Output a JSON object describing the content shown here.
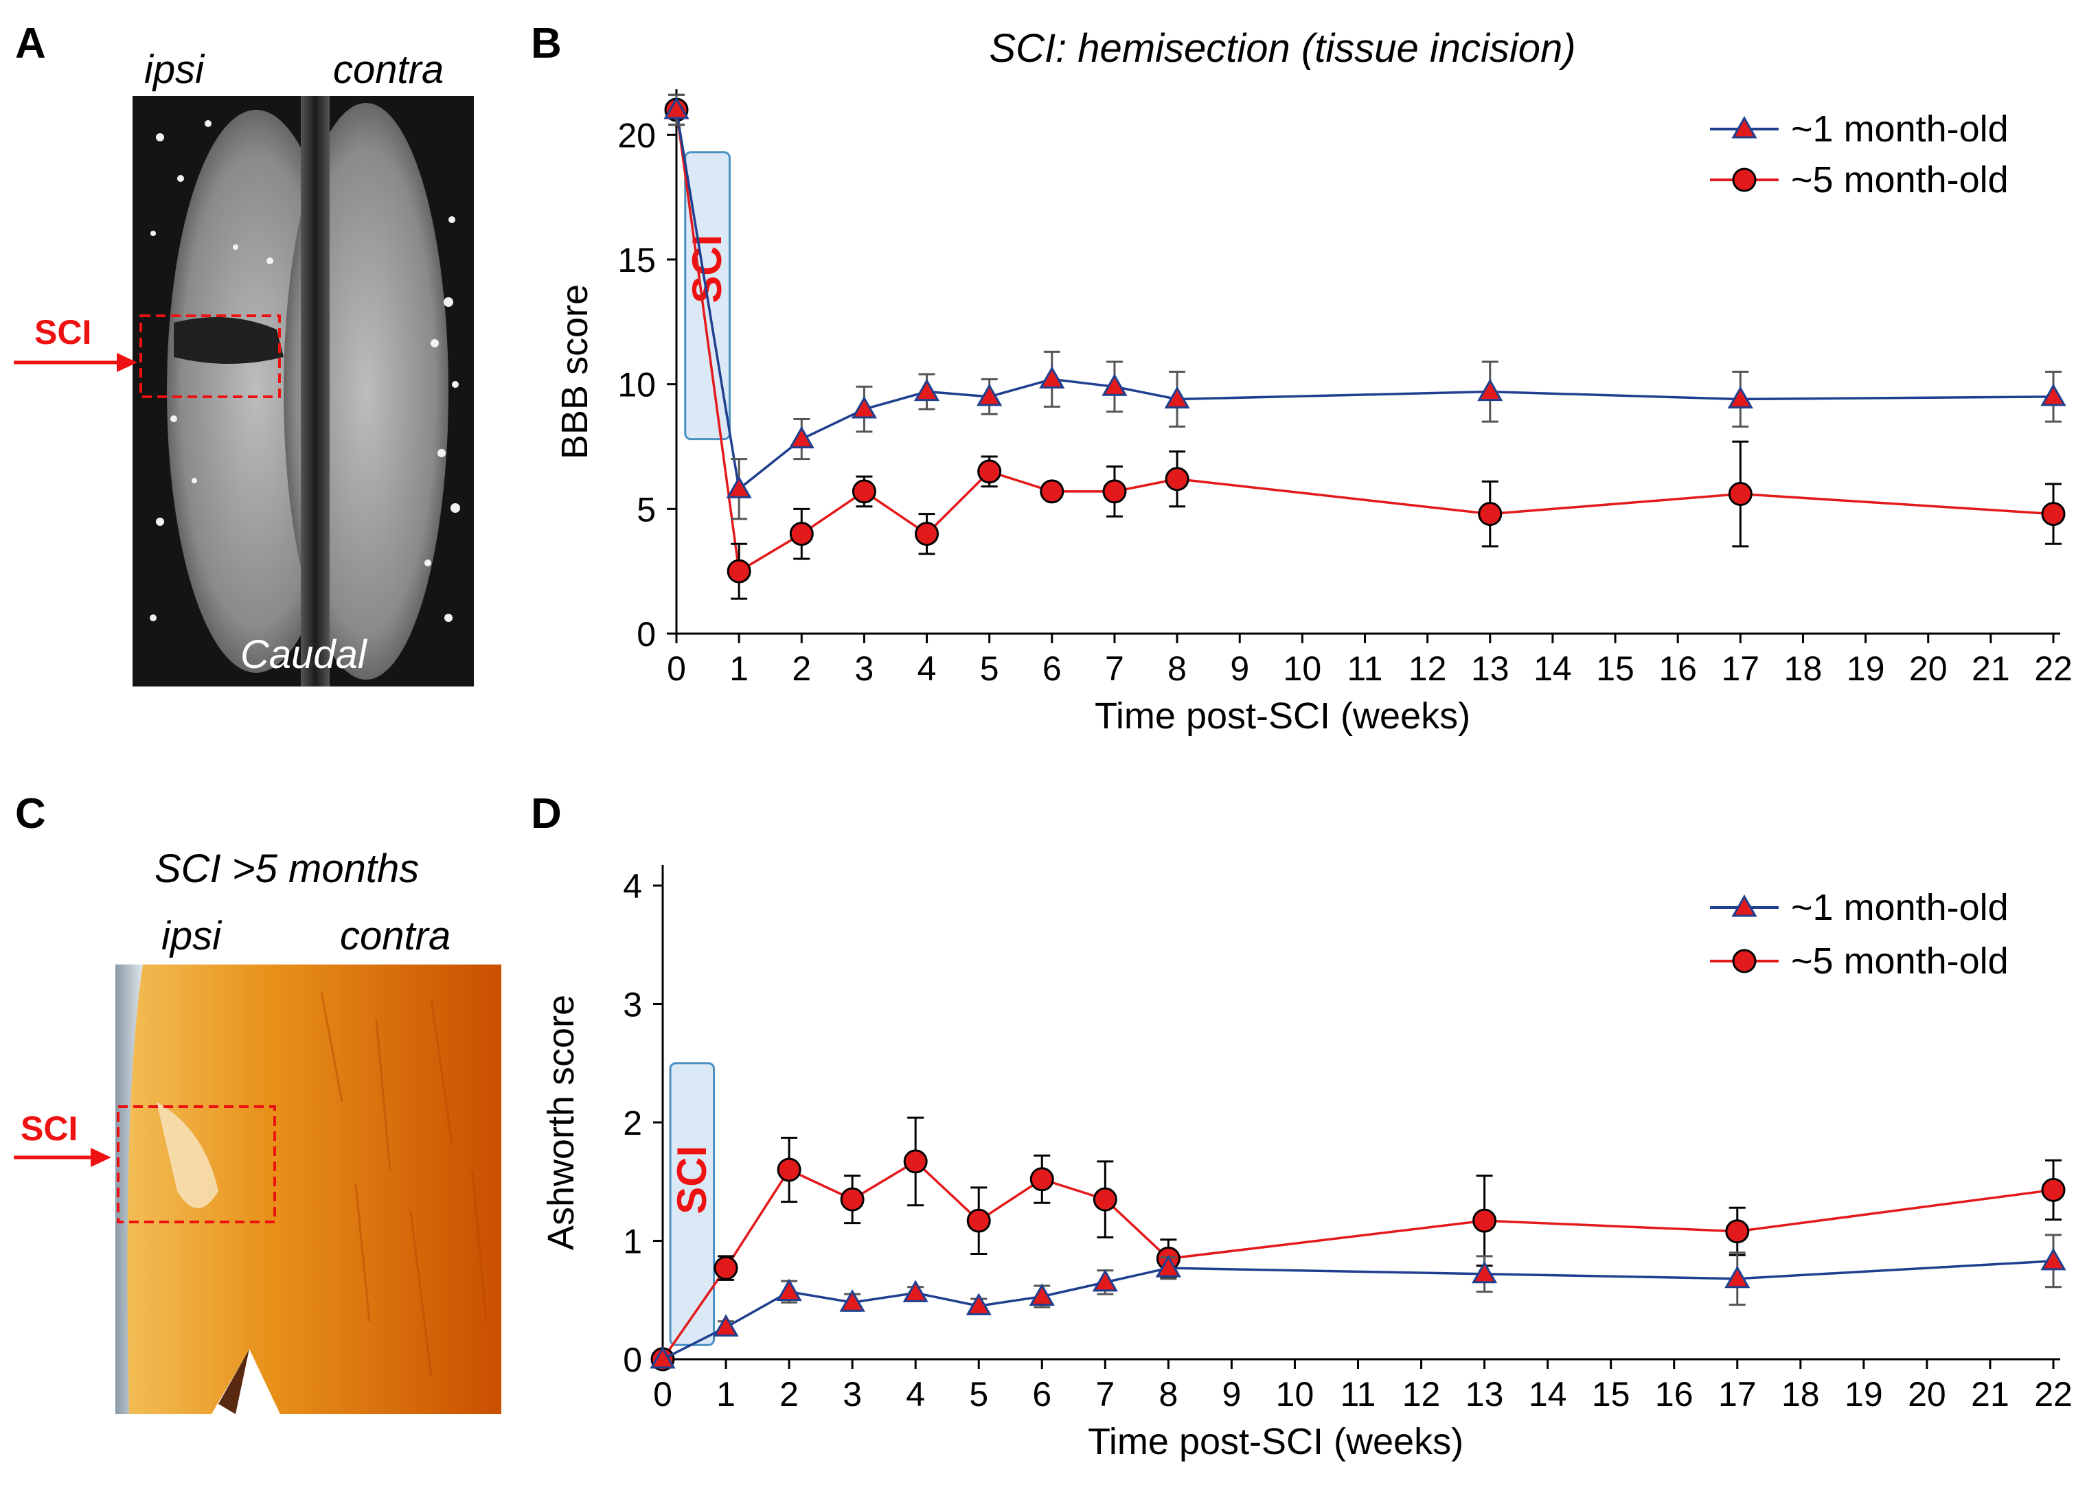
{
  "panels": {
    "a": {
      "letter": "A",
      "ipsi": "ipsi",
      "contra": "contra",
      "caudal": "Caudal",
      "sci": "SCI"
    },
    "c": {
      "letter": "C",
      "title": "SCI >5 months",
      "ipsi": "ipsi",
      "contra": "contra",
      "sci": "SCI"
    },
    "b": {
      "letter": "B"
    },
    "d": {
      "letter": "D"
    }
  },
  "colors": {
    "young": "#1f3f8f",
    "old": "#e31a1c",
    "marker_fill_young": "#e31a1c",
    "sci_box_fill": "#dbe8f5",
    "sci_box_stroke": "#4a90c4",
    "sci_text": "#ee1111"
  },
  "chart_data": [
    {
      "id": "B",
      "type": "line",
      "title": "SCI: hemisection (tissue incision)",
      "xlabel": "Time post-SCI (weeks)",
      "ylabel": "BBB score",
      "xlim": [
        0,
        22
      ],
      "ylim": [
        0,
        21
      ],
      "xticks": [
        0,
        1,
        2,
        3,
        4,
        5,
        6,
        7,
        8,
        9,
        10,
        11,
        12,
        13,
        14,
        15,
        16,
        17,
        18,
        19,
        20,
        21,
        22
      ],
      "yticks": [
        0,
        5,
        10,
        15,
        20
      ],
      "annotation": "SCI",
      "legend_position": "top-right",
      "series": [
        {
          "name": "~1 month-old",
          "marker": "triangle",
          "x": [
            0,
            1,
            2,
            3,
            4,
            5,
            6,
            7,
            8,
            13,
            17,
            22
          ],
          "y": [
            21,
            5.8,
            7.8,
            9,
            9.7,
            9.5,
            10.2,
            9.9,
            9.4,
            9.7,
            9.4,
            9.5
          ],
          "err": [
            0.6,
            1.2,
            0.8,
            0.9,
            0.7,
            0.7,
            1.1,
            1.0,
            1.1,
            1.2,
            1.1,
            1.0
          ]
        },
        {
          "name": "~5 month-old",
          "marker": "circle",
          "x": [
            0,
            1,
            2,
            3,
            4,
            5,
            6,
            7,
            8,
            13,
            17,
            22
          ],
          "y": [
            21,
            2.5,
            4,
            5.7,
            4,
            6.5,
            5.7,
            5.7,
            6.2,
            4.8,
            5.6,
            4.8
          ],
          "err": [
            0.6,
            1.1,
            1.0,
            0.6,
            0.8,
            0.6,
            0.3,
            1.0,
            1.1,
            1.3,
            2.1,
            1.2
          ]
        }
      ]
    },
    {
      "id": "D",
      "type": "line",
      "title": "",
      "xlabel": "Time post-SCI (weeks)",
      "ylabel": "Ashworth score",
      "xlim": [
        0,
        22
      ],
      "ylim": [
        0,
        4
      ],
      "xticks": [
        0,
        1,
        2,
        3,
        4,
        5,
        6,
        7,
        8,
        9,
        10,
        11,
        12,
        13,
        14,
        15,
        16,
        17,
        18,
        19,
        20,
        21,
        22
      ],
      "yticks": [
        0,
        1,
        2,
        3,
        4
      ],
      "annotation": "SCI",
      "legend_position": "top-right",
      "series": [
        {
          "name": "~1 month-old",
          "marker": "triangle",
          "x": [
            0,
            1,
            2,
            3,
            4,
            5,
            6,
            7,
            8,
            13,
            17,
            22
          ],
          "y": [
            0,
            0.27,
            0.57,
            0.48,
            0.56,
            0.45,
            0.53,
            0.65,
            0.77,
            0.72,
            0.68,
            0.83
          ],
          "err": [
            0,
            0.05,
            0.09,
            0.07,
            0.05,
            0.06,
            0.09,
            0.1,
            0.09,
            0.15,
            0.22,
            0.22
          ]
        },
        {
          "name": "~5 month-old",
          "marker": "circle",
          "x": [
            0,
            1,
            2,
            3,
            4,
            5,
            6,
            7,
            8,
            13,
            17,
            22
          ],
          "y": [
            0,
            0.77,
            1.6,
            1.35,
            1.67,
            1.17,
            1.52,
            1.35,
            0.85,
            1.17,
            1.08,
            1.43
          ],
          "err": [
            0,
            0.1,
            0.27,
            0.2,
            0.37,
            0.28,
            0.2,
            0.32,
            0.16,
            0.38,
            0.2,
            0.25
          ]
        }
      ]
    }
  ]
}
